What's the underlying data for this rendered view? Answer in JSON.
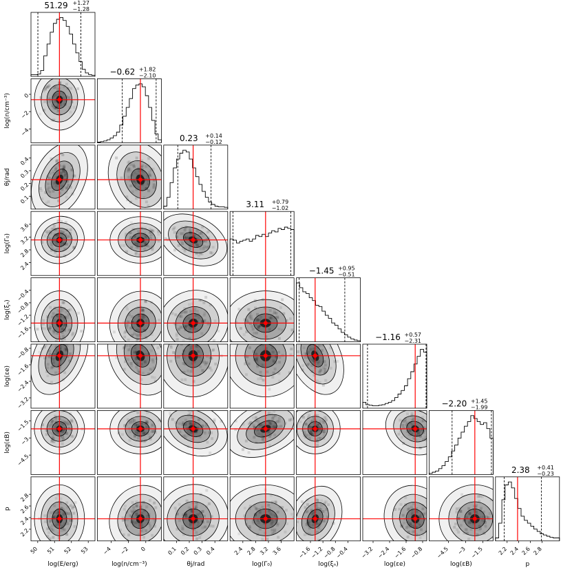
{
  "chart_data": {
    "type": "corner",
    "colors": {
      "truth": "#ff0000",
      "contour": "#000000",
      "hist": "#000000"
    },
    "parameters": [
      {
        "label": "log(E/erg)",
        "lim": [
          49.6,
          53.4
        ],
        "ticks": [
          50,
          51,
          52,
          53
        ],
        "median": 51.29,
        "plus": 1.27,
        "minus": 1.28,
        "summary": "51.29",
        "summary_plus": "+1.27",
        "summary_minus": "−1.28",
        "hist": {
          "edges": [
            49.6,
            53.4
          ],
          "heights": [
            0.03,
            0.03,
            0.04,
            0.1,
            0.35,
            0.55,
            0.75,
            0.9,
            0.97,
            1.0,
            0.95,
            0.85,
            0.72,
            0.55,
            0.4,
            0.25,
            0.12,
            0.06,
            0.03,
            0.02
          ]
        }
      },
      {
        "label": "log(n/cm⁻³)",
        "lim": [
          -5.6,
          1.8
        ],
        "ticks": [
          -4,
          -2,
          0
        ],
        "median": -0.62,
        "plus": 1.82,
        "minus": 2.1,
        "summary": "−0.62",
        "summary_plus": "+1.82",
        "summary_minus": "−2.10",
        "hist": {
          "edges": [
            -5.6,
            1.8
          ],
          "heights": [
            0.01,
            0.02,
            0.03,
            0.05,
            0.08,
            0.12,
            0.18,
            0.3,
            0.45,
            0.6,
            0.75,
            0.92,
            0.98,
            1.0,
            0.95,
            0.8,
            0.6,
            0.38,
            0.15,
            0.05
          ]
        }
      },
      {
        "label": "θj/rad",
        "lim": [
          0.0,
          0.5
        ],
        "ticks": [
          0.1,
          0.2,
          0.3,
          0.4
        ],
        "median": 0.23,
        "plus": 0.14,
        "minus": 0.12,
        "summary": "0.23",
        "summary_plus": "+0.14",
        "summary_minus": "−0.12",
        "hist": {
          "edges": [
            0.0,
            0.5
          ],
          "heights": [
            0.05,
            0.2,
            0.45,
            0.7,
            0.85,
            0.95,
            1.0,
            0.97,
            0.85,
            0.7,
            0.55,
            0.42,
            0.3,
            0.2,
            0.12,
            0.08,
            0.05,
            0.04,
            0.04,
            0.03
          ]
        }
      },
      {
        "label": "log(Γ₀)",
        "lim": [
          2.0,
          4.0
        ],
        "ticks": [
          2.4,
          2.8,
          3.2,
          3.6
        ],
        "median": 3.11,
        "plus": 0.79,
        "minus": 1.02,
        "summary": "3.11",
        "summary_plus": "+0.79",
        "summary_minus": "−1.02",
        "hist": {
          "edges": [
            2.0,
            4.0
          ],
          "heights": [
            0.62,
            0.6,
            0.55,
            0.58,
            0.6,
            0.62,
            0.58,
            0.62,
            0.68,
            0.66,
            0.7,
            0.66,
            0.72,
            0.76,
            0.74,
            0.8,
            0.78,
            0.82,
            0.8,
            0.78
          ]
        }
      },
      {
        "label": "log(ξₙ)",
        "lim": [
          -2.05,
          0.0
        ],
        "ticks": [
          -1.6,
          -1.2,
          -0.8,
          -0.4
        ],
        "median": -1.45,
        "plus": 0.95,
        "minus": 0.51,
        "summary": "−1.45",
        "summary_plus": "+0.95",
        "summary_minus": "−0.51",
        "hist": {
          "edges": [
            -2.05,
            0.0
          ],
          "heights": [
            1.0,
            0.92,
            0.85,
            0.82,
            0.75,
            0.7,
            0.62,
            0.6,
            0.52,
            0.45,
            0.4,
            0.32,
            0.28,
            0.22,
            0.16,
            0.12,
            0.08,
            0.05,
            0.03,
            0.02
          ]
        }
      },
      {
        "label": "log(εe)",
        "lim": [
          -3.7,
          -0.6
        ],
        "ticks": [
          -3.2,
          -2.4,
          -1.6,
          -0.8
        ],
        "median": -1.16,
        "plus": 0.57,
        "minus": 2.31,
        "summary": "−1.16",
        "summary_plus": "+0.57",
        "summary_minus": "−2.31",
        "hist": {
          "edges": [
            -3.7,
            -0.6
          ],
          "heights": [
            0.1,
            0.06,
            0.05,
            0.04,
            0.04,
            0.05,
            0.06,
            0.08,
            0.1,
            0.13,
            0.18,
            0.24,
            0.3,
            0.38,
            0.5,
            0.62,
            0.75,
            0.88,
            1.0,
            0.95
          ]
        }
      },
      {
        "label": "log(εB)",
        "lim": [
          -6.2,
          -0.6
        ],
        "ticks": [
          -4.5,
          -3.0,
          -1.5
        ],
        "median": -2.2,
        "plus": 1.45,
        "minus": 1.99,
        "summary": "−2.20",
        "summary_plus": "+1.45",
        "summary_minus": "−1.99",
        "hist": {
          "edges": [
            -6.2,
            -0.6
          ],
          "heights": [
            0.02,
            0.04,
            0.06,
            0.1,
            0.15,
            0.22,
            0.3,
            0.4,
            0.5,
            0.62,
            0.72,
            0.82,
            0.9,
            1.0,
            0.95,
            0.9,
            0.85,
            0.88,
            0.78,
            0.62
          ]
        }
      },
      {
        "label": "p",
        "lim": [
          2.0,
          3.1
        ],
        "ticks": [
          2.2,
          2.4,
          2.6,
          2.8
        ],
        "median": 2.38,
        "plus": 0.41,
        "minus": 0.23,
        "summary": "2.38",
        "summary_plus": "+0.41",
        "summary_minus": "−0.23",
        "hist": {
          "edges": [
            2.0,
            3.1
          ],
          "heights": [
            0.05,
            0.3,
            0.7,
            0.95,
            1.0,
            0.9,
            0.72,
            0.55,
            0.42,
            0.35,
            0.3,
            0.25,
            0.2,
            0.16,
            0.12,
            0.1,
            0.08,
            0.06,
            0.05,
            0.05
          ]
        }
      }
    ],
    "ylabels": [
      {
        "row": 1,
        "text": "log(n/cm⁻³)",
        "ticks": [
          -4,
          -2,
          0
        ]
      },
      {
        "row": 2,
        "text": "θj/rad",
        "ticks": [
          0.1,
          0.2,
          0.3,
          0.4
        ]
      },
      {
        "row": 3,
        "text": "log(Γ₀)",
        "ticks": [
          2.4,
          2.8,
          3.2,
          3.6
        ]
      },
      {
        "row": 4,
        "text": "log(ξₙ)",
        "ticks": [
          -1.6,
          -1.2,
          -0.8,
          -0.4
        ]
      },
      {
        "row": 5,
        "text": "log(εe)",
        "ticks": [
          -3.2,
          -2.4,
          -1.6,
          -0.8
        ]
      },
      {
        "row": 6,
        "text": "log(εB)",
        "ticks": [
          -4.5,
          -3.0,
          -1.5
        ]
      },
      {
        "row": 7,
        "text": "p",
        "ticks": [
          2.2,
          2.4,
          2.6,
          2.8
        ]
      }
    ]
  }
}
